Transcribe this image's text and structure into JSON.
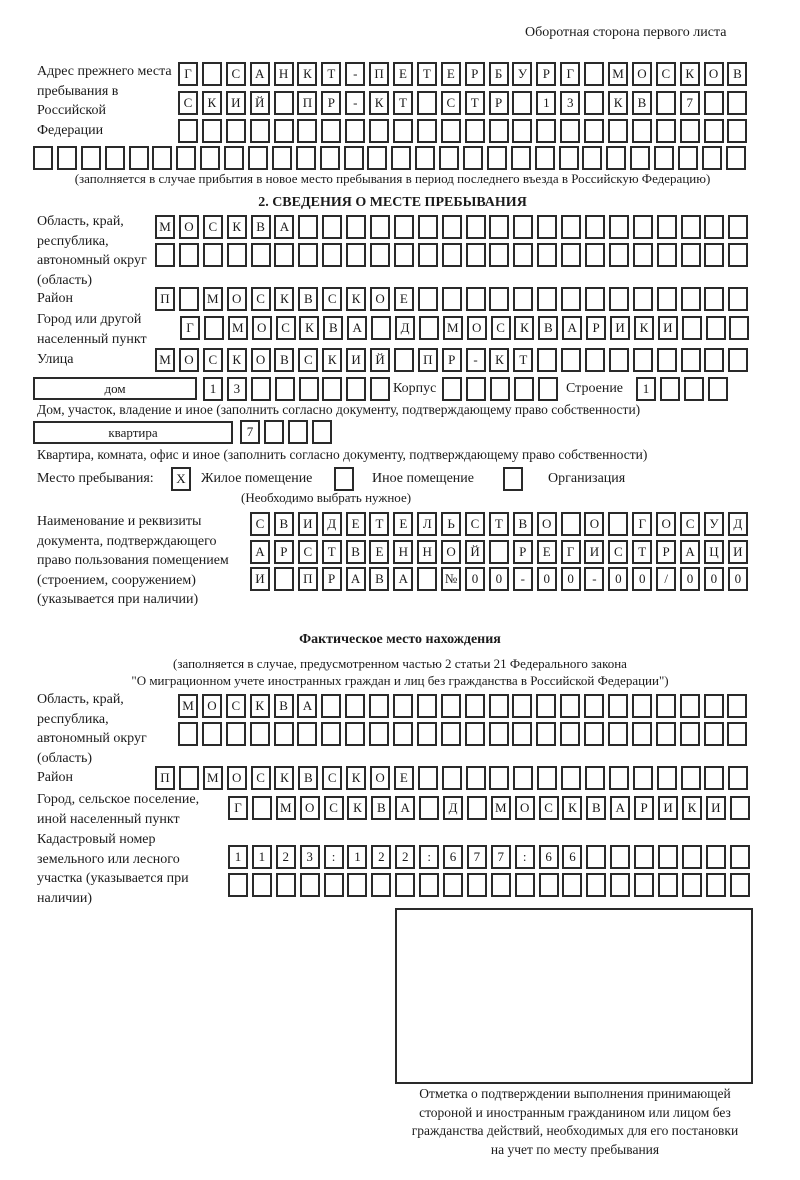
{
  "header": {
    "side_title": "Оборотная сторона первого листа"
  },
  "prev_address": {
    "label": "Адрес прежнего места пребывания в Российской Федерации",
    "rows": [
      "Г САНКТ-ПЕТЕРБУРГ МОСКОВ",
      "СКИЙ ПР-КТ СТР 13 КВ 7",
      "",
      ""
    ],
    "note": "(заполняется в случае прибытия в новое место пребывания в период последнего въезда в Российскую Федерацию)"
  },
  "section2": {
    "heading": "2. СВЕДЕНИЯ О МЕСТЕ ПРЕБЫВАНИЯ",
    "region_label": "Область, край, республика, автономный округ (область)",
    "region_rows": [
      "МОСКВА",
      ""
    ],
    "district_label": "Район",
    "district": "П МОСКВСКОЕ",
    "city_label": "Город или другой населенный пункт",
    "city": "Г МОСКВА Д МОСКВАРИКИ",
    "street_label": "Улица",
    "street": "МОСКОВСКИЙ ПР-КТ",
    "house_type": "дом",
    "house_number": "13",
    "korpus_label": "Корпус",
    "korpus": "",
    "building_label": "Строение",
    "building": "1",
    "house_note": "Дом, участок, владение и иное (заполнить согласно документу, подтверждающему право собственности)",
    "apt_type": "квартира",
    "apt_number": "7",
    "apt_note": "Квартира, комната, офис и иное (заполнить согласно документу, подтверждающему право собственности)",
    "place_label": "Место пребывания:",
    "place_options": [
      {
        "label": "Жилое помещение",
        "mark": "X"
      },
      {
        "label": "Иное помещение",
        "mark": ""
      },
      {
        "label": "Организация",
        "mark": ""
      }
    ],
    "place_hint": "(Необходимо выбрать нужное)",
    "doc_label": "Наименование и реквизиты документа, подтверждающего право пользования помещением (строением, сооружением) (указывается при наличии)",
    "doc_rows": [
      "СВИДЕТЕЛЬСТВО О ГОСУД",
      "АРСТВЕННОЙ РЕГИСТРАЦИ",
      "И ПРАВА №00-00-00/000"
    ]
  },
  "actual": {
    "heading": "Фактическое место нахождения",
    "note1": "(заполняется в случае, предусмотренном частью 2 статьи 21 Федерального закона",
    "note2": "\"О миграционном учете иностранных граждан и лиц без гражданства в Российской Федерации\")",
    "region_label": "Область, край, республика, автономный округ (область)",
    "region_rows": [
      "МОСКВА",
      ""
    ],
    "district_label": "Район",
    "district": "П МОСКВСКОЕ",
    "city_label": "Город, сельское поселение, иной населенный пункт",
    "city": "Г МОСКВА Д МОСКВАРИКИ",
    "cadastral_label": "Кадастровый номер земельного или лесного участка (указывается при наличии)",
    "cadastral_rows": [
      "1123:122:677:66",
      ""
    ]
  },
  "stamp": {
    "caption": "Отметка о подтверждении выполнения принимающей стороной и иностранным гражданином или лицом без гражданства действий, необходимых для его постановки на учет по месту пребывания"
  }
}
